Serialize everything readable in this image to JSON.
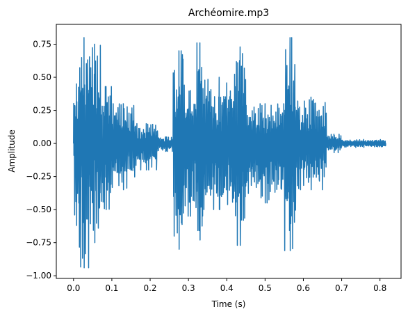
{
  "chart_data": {
    "type": "line",
    "title": "Archéomire.mp3",
    "xlabel": "Time (s)",
    "ylabel": "Amplitude",
    "xlim": [
      -0.045,
      0.855
    ],
    "ylim": [
      -1.02,
      0.9
    ],
    "grid": false,
    "legend": "none",
    "x_ticks": [
      0.0,
      0.1,
      0.2,
      0.3,
      0.4,
      0.5,
      0.6,
      0.7,
      0.8
    ],
    "x_tick_labels": [
      "0.0",
      "0.1",
      "0.2",
      "0.3",
      "0.4",
      "0.5",
      "0.6",
      "0.7",
      "0.8"
    ],
    "y_ticks": [
      0.75,
      0.5,
      0.25,
      0.0,
      -0.25,
      -0.5,
      -0.75,
      -1.0
    ],
    "y_tick_labels": [
      "0.75",
      "0.50",
      "0.25",
      "0.00",
      "−0.25",
      "−0.50",
      "−0.75",
      "−1.00"
    ],
    "series": [
      {
        "color": "#1f77b4",
        "duration": 0.815,
        "envelope": [
          {
            "start": 0.0,
            "end": 0.015,
            "positive_peak": 0.45,
            "negative_peak": -0.62
          },
          {
            "start": 0.015,
            "end": 0.04,
            "positive_peak": 0.8,
            "negative_peak": -0.94
          },
          {
            "start": 0.04,
            "end": 0.07,
            "positive_peak": 0.75,
            "negative_peak": -0.75
          },
          {
            "start": 0.07,
            "end": 0.1,
            "positive_peak": 0.43,
            "negative_peak": -0.5
          },
          {
            "start": 0.1,
            "end": 0.16,
            "positive_peak": 0.3,
            "negative_peak": -0.35
          },
          {
            "start": 0.16,
            "end": 0.22,
            "positive_peak": 0.15,
            "negative_peak": -0.2
          },
          {
            "start": 0.22,
            "end": 0.26,
            "positive_peak": 0.05,
            "negative_peak": -0.06
          },
          {
            "start": 0.26,
            "end": 0.29,
            "positive_peak": 0.7,
            "negative_peak": -0.8
          },
          {
            "start": 0.29,
            "end": 0.32,
            "positive_peak": 0.4,
            "negative_peak": -0.55
          },
          {
            "start": 0.32,
            "end": 0.34,
            "positive_peak": 0.76,
            "negative_peak": -0.73
          },
          {
            "start": 0.34,
            "end": 0.42,
            "positive_peak": 0.5,
            "negative_peak": -0.5
          },
          {
            "start": 0.42,
            "end": 0.45,
            "positive_peak": 0.73,
            "negative_peak": -0.77
          },
          {
            "start": 0.45,
            "end": 0.55,
            "positive_peak": 0.3,
            "negative_peak": -0.45
          },
          {
            "start": 0.55,
            "end": 0.58,
            "positive_peak": 0.8,
            "negative_peak": -0.81
          },
          {
            "start": 0.58,
            "end": 0.66,
            "positive_peak": 0.35,
            "negative_peak": -0.35
          },
          {
            "start": 0.66,
            "end": 0.7,
            "positive_peak": 0.07,
            "negative_peak": -0.07
          },
          {
            "start": 0.7,
            "end": 0.815,
            "positive_peak": 0.03,
            "negative_peak": -0.03
          }
        ]
      }
    ]
  }
}
